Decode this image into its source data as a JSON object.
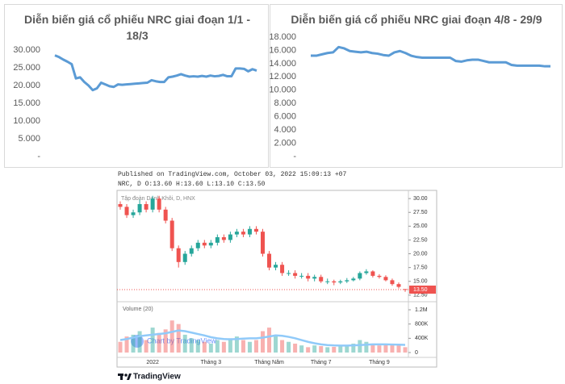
{
  "chart_data": [
    {
      "type": "line",
      "title": "Diễn biến giá cổ phiếu NRC giai đoạn 1/1 - 18/3",
      "color": "#5b9bd5",
      "grid": false,
      "ylim": [
        0,
        30000
      ],
      "yticks": [
        {
          "value": 0,
          "label": "-"
        },
        {
          "value": 5000,
          "label": "5.000"
        },
        {
          "value": 10000,
          "label": "10.000"
        },
        {
          "value": 15000,
          "label": "15.000"
        },
        {
          "value": 20000,
          "label": "20.000"
        },
        {
          "value": 25000,
          "label": "25.000"
        },
        {
          "value": 30000,
          "label": "30.000"
        }
      ],
      "values": [
        28500,
        28000,
        27300,
        26700,
        26000,
        22000,
        22300,
        21000,
        20000,
        18700,
        19200,
        20800,
        20300,
        19800,
        19600,
        20300,
        20200,
        20300,
        20400,
        20500,
        20600,
        20700,
        20800,
        21500,
        21200,
        21000,
        21000,
        22300,
        22500,
        22800,
        23200,
        22800,
        22500,
        22600,
        22500,
        22700,
        22500,
        22800,
        22600,
        22700,
        23000,
        22600,
        22600,
        24800,
        24800,
        24700,
        24000,
        24600,
        24200
      ]
    },
    {
      "type": "line",
      "title": "Diễn biến giá cổ phiếu NRC giai đoạn 4/8 - 29/9",
      "color": "#5b9bd5",
      "grid": false,
      "ylim": [
        0,
        18000
      ],
      "yticks": [
        {
          "value": 0,
          "label": "-"
        },
        {
          "value": 2000,
          "label": "2.000"
        },
        {
          "value": 4000,
          "label": "4.000"
        },
        {
          "value": 6000,
          "label": "6.000"
        },
        {
          "value": 8000,
          "label": "8.000"
        },
        {
          "value": 10000,
          "label": "10.000"
        },
        {
          "value": 12000,
          "label": "12.000"
        },
        {
          "value": 14000,
          "label": "14.000"
        },
        {
          "value": 16000,
          "label": "16.000"
        },
        {
          "value": 18000,
          "label": "18.000"
        }
      ],
      "values": [
        15200,
        15200,
        15400,
        15600,
        15700,
        16500,
        16300,
        15900,
        15800,
        15700,
        15800,
        15600,
        15500,
        15300,
        15200,
        15700,
        15900,
        15600,
        15200,
        15000,
        14900,
        14900,
        14900,
        14900,
        14900,
        14900,
        14400,
        14300,
        14500,
        14600,
        14600,
        14400,
        14200,
        14200,
        14200,
        14200,
        13800,
        13700,
        13700,
        13700,
        13700,
        13700,
        13600,
        13600
      ]
    },
    {
      "type": "candlestick",
      "published": "Published on TradingView.com, October 03, 2022 15:09:13 +07",
      "legend": "NRC, D O:13.60 H:13.60 L:13.10 C:13.50",
      "symbol_label": "Tập đoàn Danh Khôi, D, HNX",
      "volume_label": "Volume (20)",
      "watermark": "Chart by TradingView",
      "brand": "TradingView",
      "up_color": "#26a69a",
      "down_color": "#ef5350",
      "ma_color": "#90caf9",
      "ylim": [
        11.6,
        30.9
      ],
      "yticks": [
        {
          "value": 12.5,
          "label": "12.50"
        },
        {
          "value": 15,
          "label": "15.00"
        },
        {
          "value": 17.5,
          "label": "17.50"
        },
        {
          "value": 20,
          "label": "20.00"
        },
        {
          "value": 22.5,
          "label": "22.50"
        },
        {
          "value": 25,
          "label": "25.00"
        },
        {
          "value": 27.5,
          "label": "27.50"
        },
        {
          "value": 30,
          "label": "30.00"
        }
      ],
      "last_price": {
        "value": 13.5,
        "label": "13.50"
      },
      "volume_ylim": [
        0,
        1200000
      ],
      "volume_ticks": [
        0,
        {
          "value": 400000,
          "label": "400K"
        },
        {
          "value": 800000,
          "label": "800K"
        },
        {
          "value": 1200000,
          "label": "1.2M"
        }
      ],
      "categories": [
        null,
        null,
        null,
        null,
        null,
        "2022",
        null,
        null,
        null,
        null,
        null,
        null,
        null,
        null,
        "Tháng 3",
        null,
        null,
        null,
        null,
        null,
        null,
        null,
        null,
        "Tháng Năm",
        null,
        null,
        null,
        null,
        null,
        null,
        null,
        "Tháng 7",
        null,
        null,
        null,
        null,
        null,
        null,
        null,
        null,
        "Tháng 9",
        null,
        null,
        null,
        null
      ],
      "open": [
        29,
        28.5,
        27,
        27.5,
        29,
        28,
        30,
        28,
        26,
        21,
        18.5,
        20,
        21,
        22,
        21.5,
        22,
        23,
        22.5,
        23.5,
        24,
        23.5,
        24.5,
        24,
        20,
        17.5,
        18,
        16.5,
        16.5,
        16,
        16,
        15.5,
        15.8,
        15,
        15,
        14.8,
        15,
        15.2,
        15.5,
        16.5,
        16.8,
        16,
        15.8,
        15.2,
        14.5,
        13.6
      ],
      "high": [
        29.5,
        29,
        28,
        29.8,
        29.5,
        30.5,
        30.5,
        28.5,
        26.5,
        21.5,
        20.5,
        21.5,
        22.5,
        22.5,
        22.5,
        23.5,
        23.5,
        24,
        24.5,
        24.5,
        25,
        25,
        24.5,
        20.5,
        18.5,
        18.5,
        17,
        17,
        16.5,
        16.5,
        16.2,
        16.2,
        15.5,
        15.3,
        15.3,
        15.6,
        15.8,
        16.8,
        17.2,
        17,
        16.3,
        16.1,
        15.5,
        14.8,
        13.6
      ],
      "low": [
        28,
        26.5,
        26.5,
        27,
        27.5,
        27.5,
        27.5,
        25.5,
        20.5,
        17.5,
        18,
        19.5,
        20.5,
        21,
        21,
        21.5,
        22,
        22,
        23,
        23,
        23,
        23.5,
        19.5,
        17,
        17,
        16,
        16,
        15.5,
        15.5,
        15,
        15,
        14.7,
        14.5,
        14.3,
        14.5,
        14.7,
        15,
        15.2,
        16.2,
        15.7,
        15.5,
        15,
        14.2,
        13.7,
        13.1
      ],
      "close": [
        28.5,
        27,
        27.5,
        29,
        28,
        30,
        28,
        26,
        21,
        18.5,
        20,
        21,
        22,
        21.5,
        22,
        23,
        22.5,
        23.5,
        24,
        23.5,
        24.5,
        24,
        20,
        17.5,
        18,
        16.5,
        16.5,
        16,
        16,
        15.5,
        15.8,
        15,
        15,
        14.8,
        15,
        15.2,
        15.5,
        16.5,
        16.8,
        16,
        15.8,
        15.2,
        14.5,
        14,
        13.5
      ],
      "volume": [
        300000,
        450000,
        500000,
        600000,
        350000,
        700000,
        550000,
        650000,
        900000,
        800000,
        500000,
        400000,
        350000,
        300000,
        250000,
        350000,
        300000,
        400000,
        450000,
        350000,
        300000,
        350000,
        600000,
        700000,
        500000,
        350000,
        300000,
        250000,
        200000,
        150000,
        200000,
        180000,
        150000,
        160000,
        170000,
        200000,
        250000,
        350000,
        300000,
        250000,
        200000,
        220000,
        250000,
        200000,
        150000
      ],
      "volume_ma": [
        350000,
        380000,
        420000,
        460000,
        480000,
        500000,
        520000,
        540000,
        580000,
        620000,
        600000,
        560000,
        520000,
        480000,
        430000,
        400000,
        380000,
        370000,
        380000,
        390000,
        400000,
        400000,
        420000,
        450000,
        480000,
        470000,
        440000,
        400000,
        350000,
        300000,
        260000,
        230000,
        210000,
        200000,
        195000,
        195000,
        200000,
        210000,
        220000,
        230000,
        230000,
        230000,
        225000,
        220000,
        215000
      ]
    }
  ]
}
